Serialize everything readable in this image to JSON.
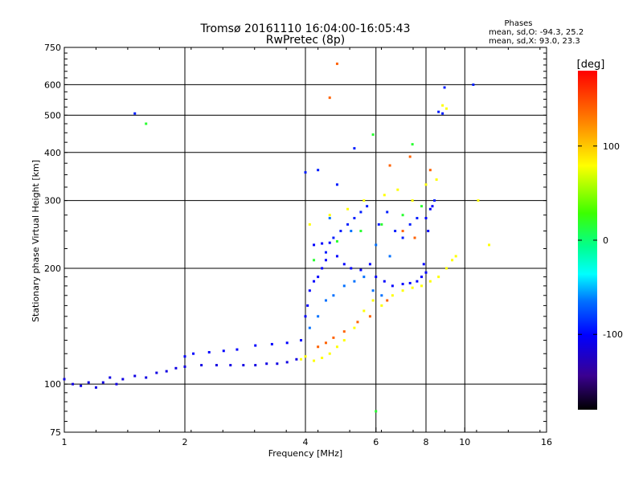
{
  "header": {
    "title_line1": "Tromsø 20161110 16:04:00-16:05:43",
    "title_line2": "RwPretec (8p)",
    "stats_title": "Phases",
    "stats_o": "mean, sd,O: -94.3, 25.2",
    "stats_x": "mean, sd,X:  93.0, 23.3"
  },
  "chart_data": {
    "type": "scatter",
    "xlabel": "Frequency [MHz]",
    "ylabel": "Stationary phase Virtual Height [km]",
    "x_scale": "log2",
    "y_scale": "log",
    "xlim": [
      1,
      16
    ],
    "ylim": [
      75,
      750
    ],
    "x_ticks": [
      1,
      2,
      4,
      6,
      8,
      10,
      16
    ],
    "x_tick_labels": [
      "1",
      "2",
      "4",
      "6",
      "8",
      "10",
      "16"
    ],
    "y_ticks": [
      75,
      100,
      200,
      300,
      400,
      500,
      600,
      750
    ],
    "y_tick_labels": [
      "75",
      "100",
      "200",
      "300",
      "400",
      "500",
      "600",
      "750"
    ],
    "grid": true,
    "colorbar": {
      "label": "[deg]",
      "range": [
        -180,
        180
      ],
      "ticks": [
        100,
        0,
        -100
      ],
      "tick_labels": [
        "100",
        "0",
        "-100"
      ]
    },
    "series": [
      {
        "description": "O-mode and X-mode echoes, colored by phase",
        "points_phase_groups": [
          {
            "phase": -110,
            "points": [
              [
                1.0,
                103
              ],
              [
                1.05,
                100
              ],
              [
                1.1,
                99
              ],
              [
                1.15,
                101
              ],
              [
                1.2,
                98
              ],
              [
                1.25,
                101
              ],
              [
                1.3,
                104
              ],
              [
                1.35,
                100
              ],
              [
                1.4,
                103
              ],
              [
                1.5,
                105
              ],
              [
                1.6,
                104
              ],
              [
                1.7,
                107
              ],
              [
                1.8,
                108
              ],
              [
                1.9,
                110
              ],
              [
                2.0,
                111
              ],
              [
                2.2,
                112
              ],
              [
                2.4,
                112
              ],
              [
                2.6,
                112
              ],
              [
                2.8,
                112
              ],
              [
                3.0,
                112
              ],
              [
                3.2,
                113
              ],
              [
                3.4,
                113
              ],
              [
                3.6,
                114
              ],
              [
                3.8,
                116
              ]
            ]
          },
          {
            "phase": -100,
            "points": [
              [
                2.0,
                118
              ],
              [
                2.1,
                120
              ],
              [
                2.3,
                121
              ],
              [
                2.5,
                122
              ],
              [
                2.7,
                123
              ],
              [
                3.0,
                126
              ],
              [
                3.3,
                127
              ],
              [
                3.6,
                128
              ],
              [
                3.9,
                130
              ],
              [
                4.0,
                150
              ],
              [
                4.05,
                160
              ],
              [
                4.1,
                175
              ],
              [
                4.2,
                185
              ],
              [
                4.3,
                190
              ],
              [
                4.4,
                200
              ],
              [
                4.5,
                210
              ],
              [
                4.2,
                230
              ],
              [
                4.4,
                232
              ],
              [
                4.6,
                233
              ],
              [
                4.8,
                215
              ],
              [
                5.0,
                205
              ],
              [
                5.2,
                200
              ],
              [
                5.5,
                198
              ],
              [
                5.8,
                205
              ],
              [
                6.0,
                190
              ],
              [
                6.3,
                185
              ],
              [
                6.6,
                180
              ],
              [
                7.0,
                182
              ],
              [
                7.3,
                183
              ],
              [
                7.6,
                185
              ],
              [
                7.8,
                190
              ],
              [
                8.0,
                195
              ],
              [
                7.9,
                205
              ],
              [
                8.1,
                250
              ],
              [
                8.0,
                270
              ],
              [
                8.2,
                285
              ],
              [
                8.3,
                290
              ]
            ]
          },
          {
            "phase": -90,
            "points": [
              [
                4.5,
                220
              ],
              [
                4.7,
                240
              ],
              [
                4.9,
                250
              ],
              [
                5.1,
                260
              ],
              [
                5.3,
                270
              ],
              [
                5.5,
                280
              ],
              [
                5.7,
                290
              ],
              [
                6.1,
                260
              ],
              [
                6.4,
                280
              ],
              [
                6.7,
                250
              ],
              [
                7.0,
                240
              ],
              [
                7.3,
                260
              ],
              [
                7.6,
                270
              ],
              [
                8.4,
                300
              ],
              [
                8.6,
                510
              ],
              [
                8.8,
                505
              ],
              [
                4.0,
                355
              ],
              [
                4.3,
                360
              ],
              [
                4.8,
                330
              ],
              [
                5.3,
                410
              ],
              [
                10.5,
                600
              ],
              [
                1.5,
                505
              ],
              [
                8.9,
                590
              ]
            ]
          },
          {
            "phase": -60,
            "points": [
              [
                4.1,
                140
              ],
              [
                4.3,
                150
              ],
              [
                4.5,
                165
              ],
              [
                4.7,
                170
              ],
              [
                5.0,
                180
              ],
              [
                5.3,
                185
              ],
              [
                5.6,
                190
              ],
              [
                5.9,
                175
              ],
              [
                6.2,
                170
              ],
              [
                4.6,
                270
              ],
              [
                5.2,
                250
              ],
              [
                6.0,
                230
              ],
              [
                6.5,
                215
              ]
            ]
          },
          {
            "phase": 80,
            "points": [
              [
                3.9,
                116
              ],
              [
                4.0,
                118
              ],
              [
                4.2,
                115
              ],
              [
                4.4,
                117
              ],
              [
                4.6,
                120
              ],
              [
                4.8,
                125
              ],
              [
                5.0,
                130
              ],
              [
                5.3,
                140
              ],
              [
                5.6,
                155
              ],
              [
                5.9,
                165
              ],
              [
                6.2,
                160
              ],
              [
                6.6,
                170
              ],
              [
                7.0,
                175
              ],
              [
                7.4,
                178
              ],
              [
                7.8,
                180
              ],
              [
                8.2,
                185
              ],
              [
                8.6,
                190
              ],
              [
                9.0,
                200
              ],
              [
                9.3,
                210
              ],
              [
                9.5,
                215
              ],
              [
                4.1,
                260
              ],
              [
                4.6,
                275
              ],
              [
                5.1,
                285
              ],
              [
                5.6,
                300
              ],
              [
                6.3,
                310
              ],
              [
                6.8,
                320
              ],
              [
                7.4,
                300
              ],
              [
                8.0,
                330
              ],
              [
                8.5,
                340
              ],
              [
                9.0,
                520
              ],
              [
                8.8,
                530
              ],
              [
                10.8,
                300
              ],
              [
                11.5,
                230
              ]
            ]
          },
          {
            "phase": 140,
            "points": [
              [
                4.3,
                125
              ],
              [
                4.5,
                128
              ],
              [
                4.7,
                132
              ],
              [
                5.0,
                137
              ],
              [
                5.4,
                145
              ],
              [
                5.8,
                150
              ],
              [
                6.4,
                165
              ],
              [
                7.0,
                250
              ],
              [
                7.5,
                240
              ],
              [
                6.5,
                370
              ],
              [
                7.3,
                390
              ],
              [
                8.2,
                360
              ],
              [
                4.6,
                555
              ],
              [
                4.8,
                680
              ]
            ]
          },
          {
            "phase": 10,
            "points": [
              [
                1.6,
                475
              ],
              [
                4.2,
                210
              ],
              [
                4.8,
                235
              ],
              [
                5.5,
                250
              ],
              [
                6.2,
                260
              ],
              [
                7.0,
                275
              ],
              [
                7.8,
                290
              ],
              [
                5.9,
                445
              ],
              [
                7.4,
                420
              ],
              [
                6.0,
                85
              ]
            ]
          }
        ]
      }
    ]
  }
}
